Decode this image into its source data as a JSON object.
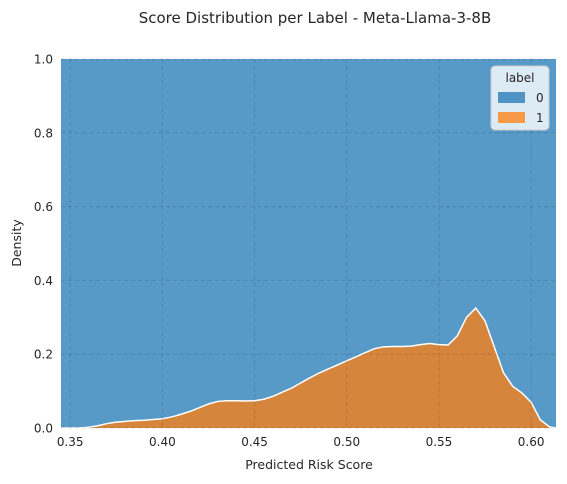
{
  "chart_data": {
    "type": "area",
    "title": "Score Distribution per Label - Meta-Llama-3-8B",
    "xlabel": "Predicted Risk Score",
    "ylabel": "Density",
    "xlim": [
      0.345,
      0.6135
    ],
    "ylim": [
      0.0,
      1.0
    ],
    "x_ticks": [
      0.35,
      0.4,
      0.45,
      0.5,
      0.55,
      0.6
    ],
    "x_tick_labels": [
      "0.35",
      "0.40",
      "0.45",
      "0.50",
      "0.55",
      "0.60"
    ],
    "y_ticks": [
      0.0,
      0.2,
      0.4,
      0.6,
      0.8,
      1.0
    ],
    "y_tick_labels": [
      "0.0",
      "0.2",
      "0.4",
      "0.6",
      "0.8",
      "1.0"
    ],
    "grid": true,
    "stacked": "fill",
    "legend": {
      "title": "label",
      "placement": "top-right",
      "entries": [
        "0",
        "1"
      ]
    },
    "series": [
      {
        "name": "0",
        "color": "#1f77b4",
        "fill_to": 1.0,
        "fill_from": "series-1"
      },
      {
        "name": "1",
        "color": "#ff7f0e",
        "x": [
          0.345,
          0.35,
          0.355,
          0.36,
          0.365,
          0.37,
          0.375,
          0.38,
          0.385,
          0.39,
          0.395,
          0.4,
          0.405,
          0.41,
          0.415,
          0.42,
          0.425,
          0.43,
          0.435,
          0.44,
          0.445,
          0.45,
          0.455,
          0.46,
          0.465,
          0.47,
          0.475,
          0.48,
          0.485,
          0.49,
          0.495,
          0.5,
          0.505,
          0.51,
          0.515,
          0.52,
          0.525,
          0.53,
          0.535,
          0.54,
          0.545,
          0.55,
          0.555,
          0.56,
          0.565,
          0.57,
          0.575,
          0.58,
          0.585,
          0.59,
          0.595,
          0.6,
          0.605,
          0.61,
          0.6135
        ],
        "values": [
          0.0,
          0.0,
          0.0,
          0.002,
          0.006,
          0.012,
          0.016,
          0.018,
          0.02,
          0.021,
          0.023,
          0.025,
          0.03,
          0.037,
          0.045,
          0.055,
          0.065,
          0.072,
          0.074,
          0.074,
          0.073,
          0.074,
          0.078,
          0.086,
          0.097,
          0.108,
          0.122,
          0.136,
          0.149,
          0.16,
          0.171,
          0.182,
          0.193,
          0.204,
          0.215,
          0.22,
          0.221,
          0.221,
          0.222,
          0.226,
          0.229,
          0.226,
          0.225,
          0.25,
          0.3,
          0.325,
          0.29,
          0.22,
          0.15,
          0.113,
          0.095,
          0.07,
          0.022,
          0.003,
          0.0
        ]
      }
    ]
  }
}
